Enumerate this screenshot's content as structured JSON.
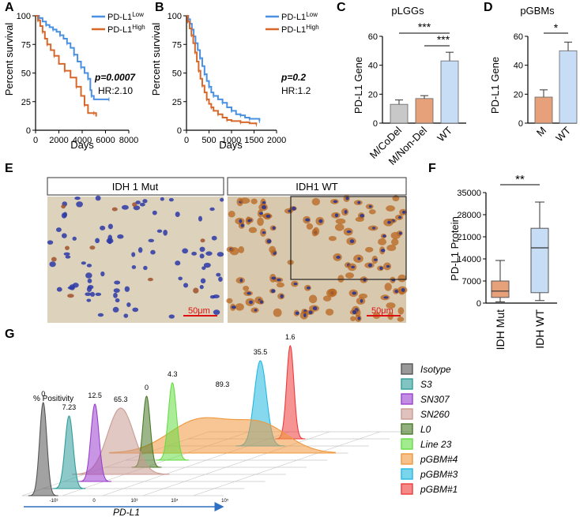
{
  "colors": {
    "low": "#4a90e2",
    "high": "#d8672a",
    "mdel_gray": "#c8c8c8",
    "orange_fill": "#e6a07a",
    "lightblue_fill": "#c7dcf5",
    "ihc_bg": "#d8ccb4"
  },
  "panels": {
    "A": {
      "letter": "A"
    },
    "B": {
      "letter": "B"
    },
    "C": {
      "letter": "C"
    },
    "D": {
      "letter": "D"
    },
    "E": {
      "letter": "E"
    },
    "F": {
      "letter": "F"
    },
    "G": {
      "letter": "G"
    }
  },
  "chart_data": [
    {
      "id": "A",
      "type": "line",
      "xlabel": "Days",
      "ylabel": "Percent survival",
      "xticks": [
        0,
        2000,
        4000,
        6000,
        8000
      ],
      "yticks": [
        0,
        25,
        50,
        75,
        100
      ],
      "xlim": [
        0,
        8000
      ],
      "ylim": [
        0,
        100
      ],
      "legend": [
        "PD-L1",
        "Low",
        "PD-L1",
        "High"
      ],
      "pvalue": "p=0.0007",
      "hr": "HR:2.10",
      "series": [
        {
          "name": "PD-L1 Low",
          "color": "#4a90e2",
          "points": [
            [
              0,
              100
            ],
            [
              300,
              98
            ],
            [
              600,
              95
            ],
            [
              900,
              92
            ],
            [
              1200,
              90
            ],
            [
              1500,
              88
            ],
            [
              1800,
              86
            ],
            [
              2100,
              83
            ],
            [
              2400,
              80
            ],
            [
              2700,
              76
            ],
            [
              3000,
              72
            ],
            [
              3300,
              66
            ],
            [
              3600,
              60
            ],
            [
              3900,
              55
            ],
            [
              4200,
              50
            ],
            [
              4500,
              45
            ],
            [
              4700,
              35
            ],
            [
              4800,
              30
            ],
            [
              5000,
              27
            ],
            [
              6300,
              27
            ]
          ]
        },
        {
          "name": "PD-L1 High",
          "color": "#d8672a",
          "points": [
            [
              0,
              100
            ],
            [
              200,
              96
            ],
            [
              400,
              91
            ],
            [
              600,
              86
            ],
            [
              800,
              80
            ],
            [
              1000,
              75
            ],
            [
              1300,
              70
            ],
            [
              1600,
              65
            ],
            [
              2000,
              58
            ],
            [
              2500,
              52
            ],
            [
              3000,
              46
            ],
            [
              3500,
              38
            ],
            [
              3900,
              30
            ],
            [
              4200,
              22
            ],
            [
              4500,
              15
            ],
            [
              5000,
              15
            ],
            [
              5200,
              12
            ]
          ]
        }
      ]
    },
    {
      "id": "B",
      "type": "line",
      "xlabel": "Days",
      "ylabel": "Percent survival",
      "xticks": [
        0,
        500,
        1000,
        1500,
        2000
      ],
      "yticks": [
        0,
        25,
        50,
        75,
        100
      ],
      "xlim": [
        0,
        2000
      ],
      "ylim": [
        0,
        100
      ],
      "legend": [
        "PD-L1",
        "Low",
        "PD-L1",
        "High"
      ],
      "pvalue": "p=0.2",
      "hr": "HR:1.2",
      "series": [
        {
          "name": "PD-L1 Low",
          "color": "#4a90e2",
          "points": [
            [
              0,
              100
            ],
            [
              40,
              97
            ],
            [
              80,
              93
            ],
            [
              120,
              88
            ],
            [
              160,
              82
            ],
            [
              200,
              76
            ],
            [
              250,
              70
            ],
            [
              300,
              63
            ],
            [
              350,
              56
            ],
            [
              400,
              49
            ],
            [
              450,
              43
            ],
            [
              500,
              38
            ],
            [
              550,
              33
            ],
            [
              600,
              30
            ],
            [
              700,
              27
            ],
            [
              800,
              24
            ],
            [
              900,
              20
            ],
            [
              1000,
              17
            ],
            [
              1100,
              14
            ],
            [
              1200,
              13
            ],
            [
              1300,
              11
            ],
            [
              1400,
              10
            ],
            [
              1550,
              10
            ],
            [
              1620,
              8
            ]
          ]
        },
        {
          "name": "PD-L1 High",
          "color": "#d8672a",
          "points": [
            [
              0,
              100
            ],
            [
              30,
              95
            ],
            [
              70,
              89
            ],
            [
              110,
              83
            ],
            [
              150,
              76
            ],
            [
              190,
              68
            ],
            [
              230,
              60
            ],
            [
              270,
              52
            ],
            [
              310,
              45
            ],
            [
              350,
              39
            ],
            [
              400,
              33
            ],
            [
              450,
              27
            ],
            [
              500,
              23
            ],
            [
              550,
              20
            ],
            [
              600,
              17
            ],
            [
              700,
              14
            ],
            [
              800,
              11
            ],
            [
              900,
              9
            ],
            [
              1000,
              8
            ],
            [
              1200,
              7
            ],
            [
              1400,
              6
            ],
            [
              1550,
              5
            ]
          ]
        }
      ]
    },
    {
      "id": "C",
      "type": "bar",
      "title": "pLGGs",
      "ylabel": "PD-L1 Gene",
      "categories": [
        "M/CoDel",
        "M/Non-Del",
        "WT"
      ],
      "values": [
        13,
        17,
        43
      ],
      "errors": [
        3,
        2,
        6
      ],
      "colors": [
        "#c8c8c8",
        "#e6a07a",
        "#c7dcf5"
      ],
      "yticks": [
        0,
        20,
        40,
        60
      ],
      "ylim": [
        0,
        60
      ],
      "significance": [
        {
          "from": 0,
          "to": 2,
          "label": "***"
        },
        {
          "from": 1,
          "to": 2,
          "label": "***"
        }
      ]
    },
    {
      "id": "D",
      "type": "bar",
      "title": "pGBMs",
      "ylabel": "PD-L1 Gene",
      "categories": [
        "M",
        "WT"
      ],
      "values": [
        18,
        50
      ],
      "errors": [
        5,
        6
      ],
      "colors": [
        "#e6a07a",
        "#c7dcf5"
      ],
      "yticks": [
        0,
        20,
        40,
        60
      ],
      "ylim": [
        0,
        60
      ],
      "significance": [
        {
          "from": 0,
          "to": 1,
          "label": "*"
        }
      ]
    },
    {
      "id": "F",
      "type": "box",
      "ylabel": "PD-L1 Protein",
      "categories": [
        "IDH Mut",
        "IDH WT"
      ],
      "boxes": [
        {
          "min": 400,
          "q1": 1800,
          "median": 3800,
          "q3": 7000,
          "max": 13500,
          "color": "#e6a07a"
        },
        {
          "min": 800,
          "q1": 3300,
          "median": 17500,
          "q3": 23700,
          "max": 32000,
          "color": "#c7dcf5"
        }
      ],
      "yticks": [
        0,
        7000,
        14000,
        21000,
        28000,
        35000
      ],
      "ylim": [
        0,
        35000
      ],
      "significance": [
        {
          "from": 0,
          "to": 1,
          "label": "**"
        }
      ]
    },
    {
      "id": "G",
      "type": "area",
      "xlabel": "PD-L1",
      "positivity_label": "% Positivity",
      "xtick_labels": [
        "-10³",
        "0",
        "10³",
        "10⁴",
        "10⁵"
      ],
      "series": [
        {
          "name": "Isotype",
          "positivity": "0",
          "color": "#555555"
        },
        {
          "name": "S3",
          "positivity": "7.23",
          "color": "#2f9d9a"
        },
        {
          "name": "SN307",
          "positivity": "12.5",
          "color": "#9b3fd0"
        },
        {
          "name": "SN260",
          "positivity": "65.3",
          "color": "#c99a92"
        },
        {
          "name": "L0",
          "positivity": "0",
          "color": "#4a7a2a"
        },
        {
          "name": "Line 23",
          "positivity": "4.3",
          "color": "#66dd44"
        },
        {
          "name": "pGBM#4",
          "positivity": "89.3",
          "color": "#f0983c"
        },
        {
          "name": "pGBM#3",
          "positivity": "35.5",
          "color": "#22b8e0"
        },
        {
          "name": "pGBM#1",
          "positivity": "1.6",
          "color": "#ee3b3b"
        }
      ]
    }
  ],
  "ihc": {
    "left_title": "IDH 1 Mut",
    "right_title": "IDH1 WT",
    "scale_left": "50μm",
    "scale_right": "50μm"
  }
}
